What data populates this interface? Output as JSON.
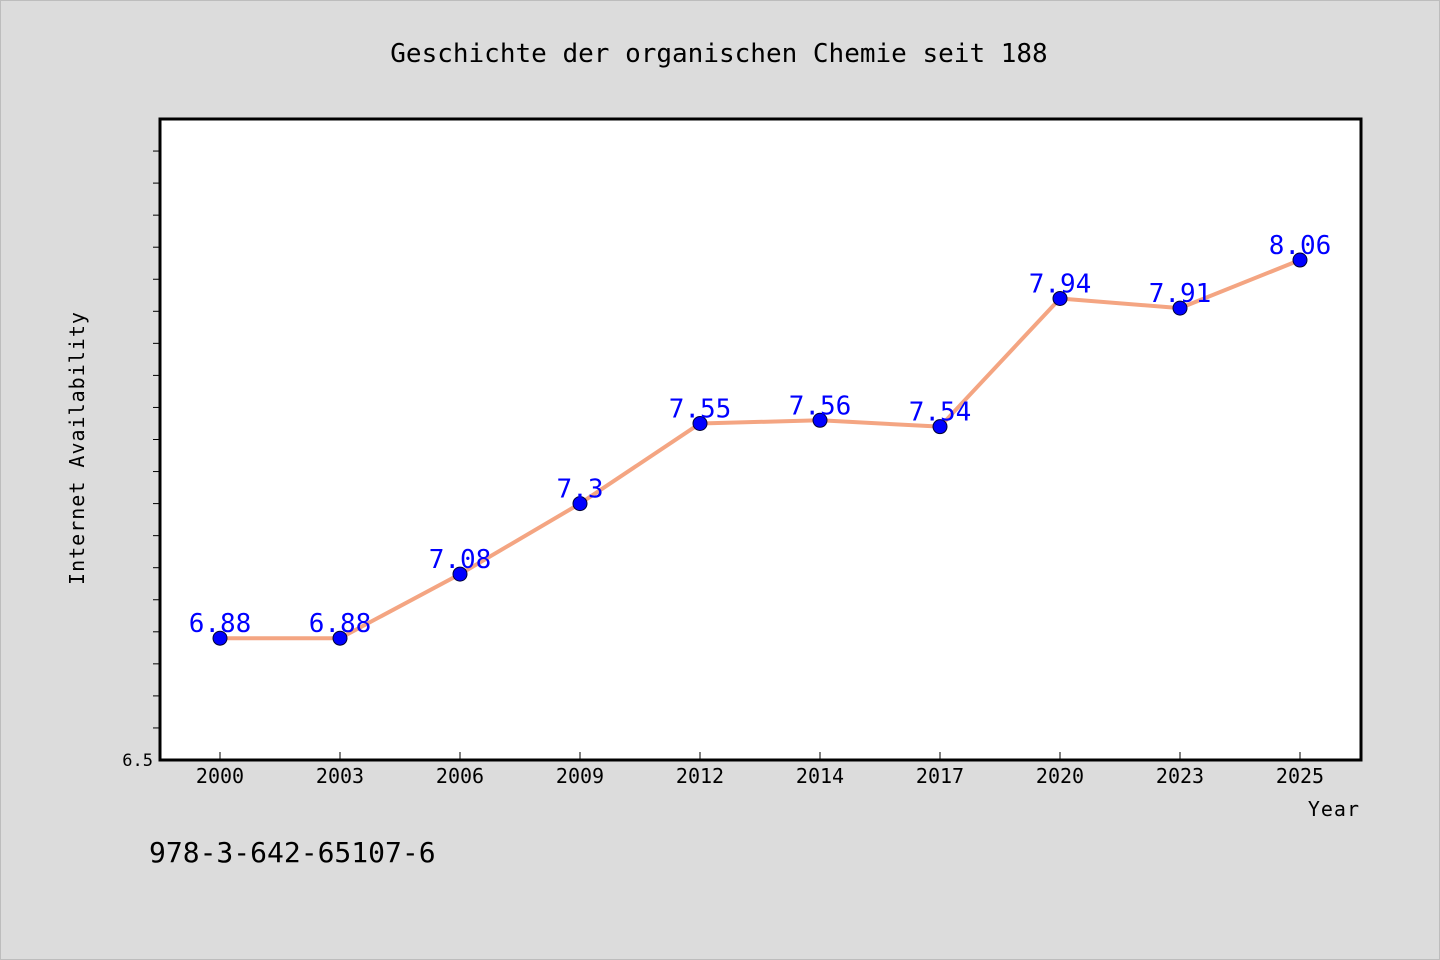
{
  "chart_data": {
    "type": "line",
    "title": "Geschichte der organischen Chemie seit 188",
    "xlabel": "Year",
    "ylabel": "Internet Availability",
    "categories": [
      "2000",
      "2003",
      "2006",
      "2009",
      "2012",
      "2014",
      "2017",
      "2020",
      "2023",
      "2025"
    ],
    "values": [
      6.88,
      6.88,
      7.08,
      7.3,
      7.55,
      7.56,
      7.54,
      7.94,
      7.91,
      8.06
    ],
    "data_labels": [
      "6.88",
      "6.88",
      "7.08",
      "7.3",
      "7.55",
      "7.56",
      "7.54",
      "7.94",
      "7.91",
      "8.06"
    ],
    "y_tick_label": "6.5",
    "ylim": [
      6.5,
      8.5
    ],
    "grid": false,
    "legend": "none",
    "colors": {
      "line": "#f4a582",
      "marker": "#0000ff",
      "label": "#0000ff",
      "plot_background": "#ffffff",
      "page_background": "#dcdcdc"
    }
  },
  "footnote": "978-3-642-65107-6"
}
